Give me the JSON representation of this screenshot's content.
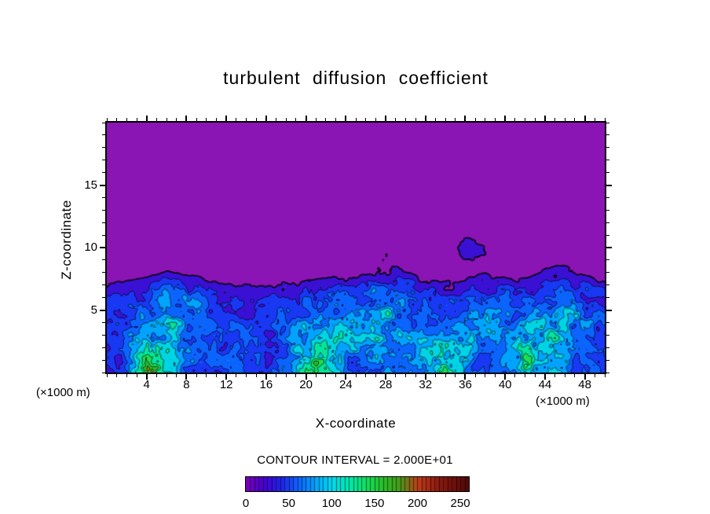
{
  "figure": {
    "title": "turbulent  diffusion  coefficient",
    "xlabel": "X-coordinate",
    "ylabel": "Z-coordinate",
    "x_units": "(×1000 m)",
    "y_units": "(×1000 m)",
    "contour_note": "CONTOUR INTERVAL = 2.000E+01"
  },
  "chart_data": {
    "type": "heatmap",
    "title": "turbulent diffusion coefficient",
    "xlabel": "X-coordinate",
    "ylabel": "Z-coordinate",
    "axis_units": "×1000 m",
    "contour_interval": 20,
    "x_range": [
      0,
      50
    ],
    "z_range": [
      0,
      20
    ],
    "x_ticks": [
      4,
      8,
      12,
      16,
      20,
      24,
      28,
      32,
      36,
      40,
      44,
      48
    ],
    "z_ticks": [
      5,
      10,
      15
    ],
    "grid_on": false,
    "colorbar_position": "bottom",
    "colorbar": {
      "min": 0,
      "max": 260,
      "labels": [
        0,
        50,
        100,
        150,
        200,
        250
      ]
    },
    "colormap_stops": [
      [
        0,
        "#7c00b4"
      ],
      [
        20,
        "#4a00d0"
      ],
      [
        40,
        "#2020e8"
      ],
      [
        60,
        "#1060ff"
      ],
      [
        80,
        "#00a0ff"
      ],
      [
        100,
        "#00d8f0"
      ],
      [
        120,
        "#00e8b0"
      ],
      [
        140,
        "#10e060"
      ],
      [
        160,
        "#28c028"
      ],
      [
        180,
        "#489818"
      ],
      [
        200,
        "#c03c18"
      ],
      [
        225,
        "#8c1810"
      ],
      [
        260,
        "#500808"
      ]
    ],
    "band_colors": [
      "#8a14b4",
      "#3a10d4",
      "#1838f4",
      "#0c64ff",
      "#00a4ff",
      "#00d4e4",
      "#04e49c",
      "#1cdc54",
      "#30b430",
      "#6c9414",
      "#c43418",
      "#901410",
      "#5c0a08"
    ],
    "grid": {
      "comment": "approximate coefficient values on coarse grid, rows listed from z=20 down to z=0, x from 0 to 50 step 2",
      "x0": 0,
      "dx": 2,
      "z0": 0,
      "dz": 2,
      "values_top_down": [
        [
          5,
          5,
          5,
          5,
          5,
          5,
          5,
          5,
          5,
          5,
          5,
          5,
          5,
          5,
          5,
          5,
          5,
          5,
          5,
          5,
          5,
          5,
          5,
          5,
          5,
          5
        ],
        [
          5,
          5,
          5,
          5,
          5,
          5,
          5,
          5,
          5,
          5,
          5,
          5,
          5,
          5,
          5,
          5,
          5,
          5,
          5,
          5,
          5,
          5,
          5,
          5,
          5,
          5
        ],
        [
          5,
          5,
          5,
          5,
          5,
          5,
          5,
          5,
          5,
          5,
          5,
          5,
          5,
          5,
          5,
          5,
          5,
          5,
          5,
          5,
          5,
          5,
          5,
          5,
          5,
          5
        ],
        [
          5,
          5,
          5,
          5,
          5,
          5,
          5,
          5,
          5,
          5,
          5,
          5,
          5,
          5,
          5,
          5,
          5,
          5,
          5,
          5,
          5,
          5,
          5,
          5,
          5,
          5
        ],
        [
          5,
          5,
          5,
          5,
          5,
          5,
          5,
          5,
          5,
          5,
          5,
          5,
          5,
          5,
          5,
          5,
          5,
          5,
          5,
          5,
          5,
          5,
          5,
          5,
          5,
          5
        ],
        [
          5,
          5,
          5,
          5,
          5,
          5,
          5,
          5,
          5,
          5,
          5,
          14,
          5,
          5,
          16,
          5,
          5,
          5,
          26,
          18,
          5,
          5,
          5,
          5,
          5,
          5
        ],
        [
          6,
          7,
          10,
          20,
          16,
          8,
          6,
          5,
          5,
          6,
          8,
          10,
          12,
          16,
          24,
          20,
          8,
          6,
          12,
          18,
          10,
          10,
          22,
          24,
          12,
          7
        ],
        [
          38,
          42,
          52,
          78,
          68,
          48,
          38,
          34,
          34,
          40,
          46,
          55,
          64,
          74,
          80,
          70,
          50,
          40,
          50,
          62,
          55,
          60,
          72,
          76,
          58,
          44
        ],
        [
          55,
          65,
          88,
          108,
          88,
          58,
          52,
          48,
          44,
          54,
          70,
          90,
          100,
          110,
          100,
          78,
          58,
          54,
          70,
          86,
          74,
          90,
          110,
          100,
          78,
          58
        ],
        [
          48,
          58,
          118,
          98,
          68,
          54,
          58,
          54,
          48,
          68,
          128,
          108,
          78,
          88,
          84,
          74,
          98,
          138,
          88,
          68,
          78,
          128,
          118,
          88,
          68,
          54
        ],
        [
          38,
          54,
          148,
          118,
          58,
          48,
          68,
          58,
          44,
          58,
          138,
          118,
          68,
          58,
          68,
          64,
          108,
          148,
          78,
          58,
          68,
          138,
          108,
          78,
          58,
          48
        ]
      ]
    }
  }
}
